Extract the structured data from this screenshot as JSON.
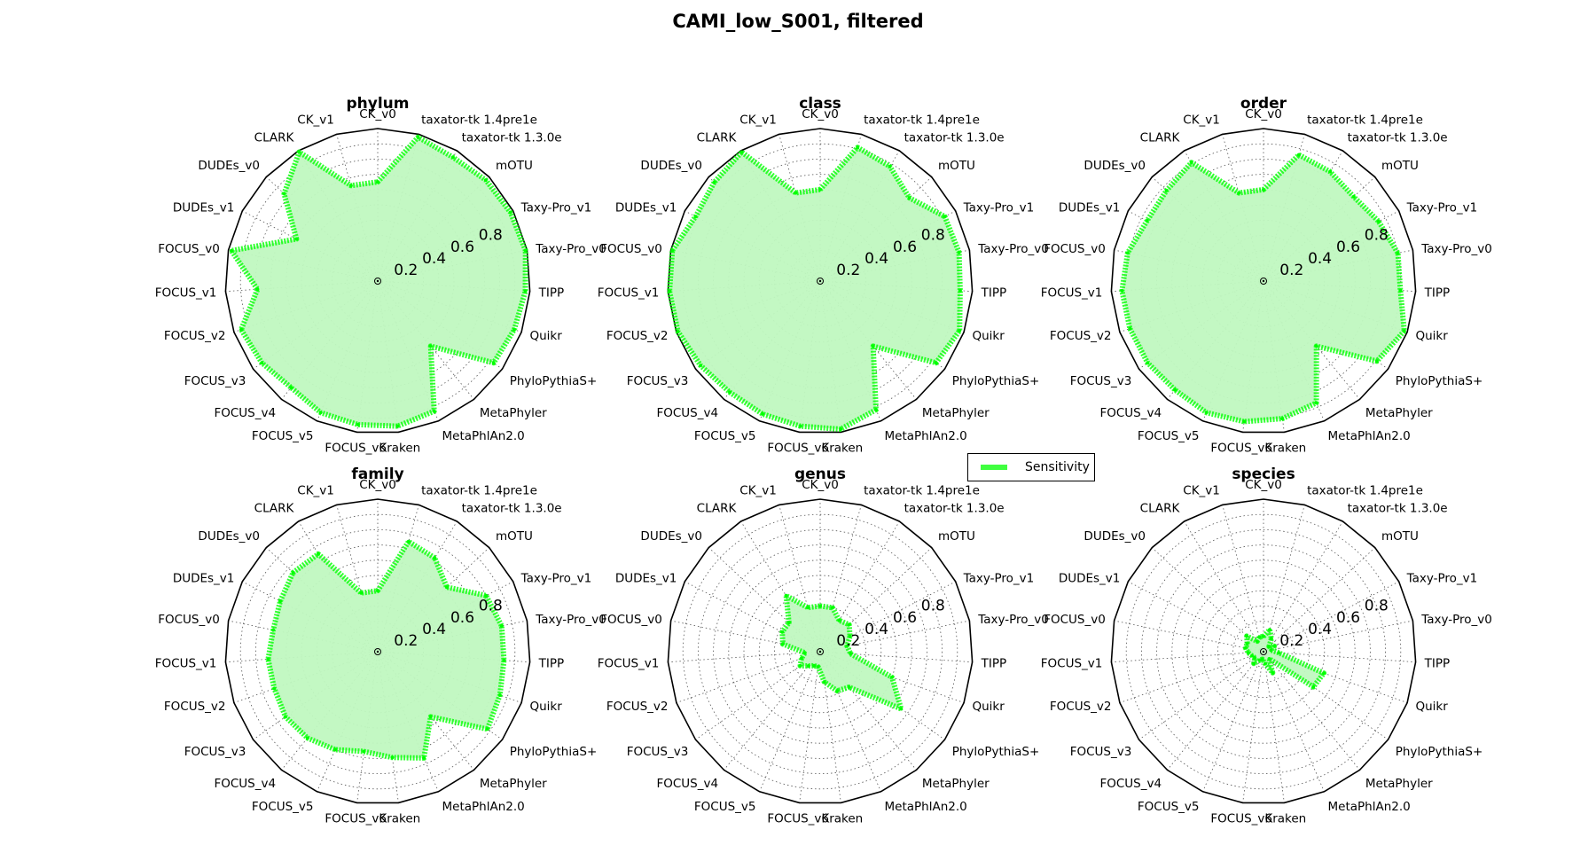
{
  "figure": {
    "title": "CAMI_low_S001, filtered",
    "legend_label": "Sensitivity",
    "series_color": "#00ff00",
    "fill_color": "#c0f8c0"
  },
  "chart_data": [
    {
      "type": "radar",
      "title": "phylum",
      "rlim": [
        0,
        1
      ],
      "radial_ticks": [
        "0.2",
        "0.4",
        "0.6",
        "0.8"
      ],
      "categories": [
        "CK_v0",
        "taxator-tk 1.4pre1e",
        "taxator-tk 1.3.0e",
        "mOTU",
        "Taxy-Pro_v1",
        "Taxy-Pro_v0",
        "TIPP",
        "Quikr",
        "PhyloPythiaS+",
        "MetaPhyler",
        "MetaPhlAn2.0",
        "Kraken",
        "FOCUS_v6",
        "FOCUS_v5",
        "FOCUS_v4",
        "FOCUS_v3",
        "FOCUS_v2",
        "FOCUS_v1",
        "FOCUS_v0",
        "DUDEs_v1",
        "DUDEs_v0",
        "CLARK",
        "CK_v1"
      ],
      "series": [
        {
          "name": "Sensitivity",
          "values": [
            0.65,
            0.98,
            0.95,
            0.97,
            0.98,
            0.99,
            0.97,
            0.95,
            0.93,
            0.55,
            0.93,
            0.96,
            0.95,
            0.94,
            0.9,
            0.93,
            0.95,
            0.79,
            0.98,
            0.6,
            0.84,
            0.99,
            0.65
          ]
        }
      ],
      "grid": true
    },
    {
      "type": "radar",
      "title": "class",
      "rlim": [
        0,
        1
      ],
      "radial_ticks": [
        "0.2",
        "0.4",
        "0.6",
        "0.8"
      ],
      "categories": [
        "CK_v0",
        "taxator-tk 1.4pre1e",
        "taxator-tk 1.3.0e",
        "mOTU",
        "Taxy-Pro_v1",
        "Taxy-Pro_v0",
        "TIPP",
        "Quikr",
        "PhyloPythiaS+",
        "MetaPhyler",
        "MetaPhlAn2.0",
        "Kraken",
        "FOCUS_v6",
        "FOCUS_v5",
        "FOCUS_v4",
        "FOCUS_v3",
        "FOCUS_v2",
        "FOCUS_v1",
        "FOCUS_v0",
        "DUDEs_v1",
        "DUDEs_v0",
        "CLARK",
        "CK_v1"
      ],
      "series": [
        {
          "name": "Sensitivity",
          "values": [
            0.6,
            0.91,
            0.88,
            0.8,
            0.92,
            0.93,
            0.92,
            0.97,
            0.93,
            0.55,
            0.92,
            0.98,
            0.96,
            0.95,
            0.94,
            0.96,
            0.99,
            0.99,
            0.99,
            0.92,
            0.95,
            0.99,
            0.6
          ]
        }
      ],
      "grid": true
    },
    {
      "type": "radar",
      "title": "order",
      "rlim": [
        0,
        1
      ],
      "radial_ticks": [
        "0.2",
        "0.4",
        "0.6",
        "0.8"
      ],
      "categories": [
        "CK_v0",
        "taxator-tk 1.4pre1e",
        "taxator-tk 1.3.0e",
        "mOTU",
        "Taxy-Pro_v1",
        "Taxy-Pro_v0",
        "TIPP",
        "Quikr",
        "PhyloPythiaS+",
        "MetaPhyler",
        "MetaPhlAn2.0",
        "Kraken",
        "FOCUS_v6",
        "FOCUS_v5",
        "FOCUS_v4",
        "FOCUS_v3",
        "FOCUS_v2",
        "FOCUS_v1",
        "FOCUS_v0",
        "DUDEs_v1",
        "DUDEs_v0",
        "CLARK",
        "CK_v1"
      ],
      "series": [
        {
          "name": "Sensitivity",
          "values": [
            0.6,
            0.86,
            0.84,
            0.81,
            0.85,
            0.9,
            0.9,
            0.98,
            0.91,
            0.55,
            0.87,
            0.91,
            0.93,
            0.94,
            0.92,
            0.93,
            0.93,
            0.93,
            0.91,
            0.86,
            0.87,
            0.91,
            0.6
          ]
        }
      ],
      "grid": true
    },
    {
      "type": "radar",
      "title": "family",
      "rlim": [
        0,
        1
      ],
      "radial_ticks": [
        "0.2",
        "0.4",
        "0.6",
        "0.8"
      ],
      "categories": [
        "CK_v0",
        "taxator-tk 1.4pre1e",
        "taxator-tk 1.3.0e",
        "mOTU",
        "Taxy-Pro_v1",
        "Taxy-Pro_v0",
        "TIPP",
        "Quikr",
        "PhyloPythiaS+",
        "MetaPhyler",
        "MetaPhlAn2.0",
        "Kraken",
        "FOCUS_v6",
        "FOCUS_v5",
        "FOCUS_v4",
        "FOCUS_v3",
        "FOCUS_v2",
        "FOCUS_v1",
        "FOCUS_v0",
        "DUDEs_v1",
        "DUDEs_v0",
        "CLARK",
        "CK_v1"
      ],
      "series": [
        {
          "name": "Sensitivity",
          "values": [
            0.4,
            0.75,
            0.72,
            0.62,
            0.8,
            0.83,
            0.83,
            0.85,
            0.88,
            0.55,
            0.76,
            0.7,
            0.66,
            0.7,
            0.73,
            0.74,
            0.72,
            0.72,
            0.7,
            0.72,
            0.76,
            0.75,
            0.4
          ]
        }
      ],
      "grid": true
    },
    {
      "type": "radar",
      "title": "genus",
      "rlim": [
        0,
        1
      ],
      "radial_ticks": [
        "0.2",
        "0.4",
        "0.6",
        "0.8"
      ],
      "categories": [
        "CK_v0",
        "taxator-tk 1.4pre1e",
        "taxator-tk 1.3.0e",
        "mOTU",
        "Taxy-Pro_v1",
        "Taxy-Pro_v0",
        "TIPP",
        "Quikr",
        "PhyloPythiaS+",
        "MetaPhyler",
        "MetaPhlAn2.0",
        "Kraken",
        "FOCUS_v6",
        "FOCUS_v5",
        "FOCUS_v4",
        "FOCUS_v3",
        "FOCUS_v2",
        "FOCUS_v1",
        "FOCUS_v0",
        "DUDEs_v1",
        "DUDEs_v0",
        "CLARK",
        "CK_v1"
      ],
      "series": [
        {
          "name": "Sensitivity",
          "values": [
            0.3,
            0.3,
            0.24,
            0.26,
            0.22,
            0.18,
            0.2,
            0.5,
            0.65,
            0.3,
            0.28,
            0.2,
            0.1,
            0.1,
            0.12,
            0.16,
            0.13,
            0.1,
            0.25,
            0.28,
            0.28,
            0.43,
            0.3
          ]
        }
      ],
      "grid": true
    },
    {
      "type": "radar",
      "title": "species",
      "rlim": [
        0,
        1
      ],
      "radial_ticks": [
        "0.2",
        "0.4",
        "0.6",
        "0.8"
      ],
      "categories": [
        "CK_v0",
        "taxator-tk 1.4pre1e",
        "taxator-tk 1.3.0e",
        "mOTU",
        "Taxy-Pro_v1",
        "Taxy-Pro_v0",
        "TIPP",
        "Quikr",
        "PhyloPythiaS+",
        "MetaPhyler",
        "MetaPhlAn2.0",
        "Kraken",
        "FOCUS_v6",
        "FOCUS_v5",
        "FOCUS_v4",
        "FOCUS_v3",
        "FOCUS_v2",
        "FOCUS_v1",
        "FOCUS_v0",
        "DUDEs_v1",
        "DUDEs_v0",
        "CLARK",
        "CK_v1"
      ],
      "series": [
        {
          "name": "Sensitivity",
          "values": [
            0.1,
            0.15,
            0.1,
            0.05,
            0.08,
            0.05,
            0.1,
            0.42,
            0.4,
            0.06,
            0.15,
            0.08,
            0.05,
            0.06,
            0.1,
            0.07,
            0.08,
            0.1,
            0.12,
            0.12,
            0.15,
            0.08,
            0.1
          ]
        }
      ],
      "grid": true
    }
  ]
}
